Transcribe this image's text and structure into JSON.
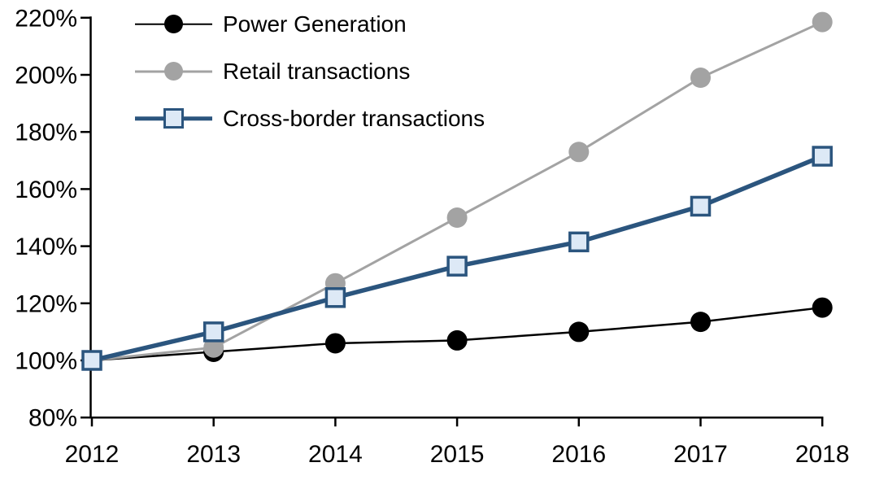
{
  "chart_data": {
    "type": "line",
    "title": "",
    "xlabel": "",
    "ylabel": "",
    "grid": false,
    "legend_position": "top-left",
    "x": [
      2012,
      2013,
      2014,
      2015,
      2016,
      2017,
      2018
    ],
    "x_tick_labels": [
      "2012",
      "2013",
      "2014",
      "2015",
      "2016",
      "2017",
      "2018"
    ],
    "y_axis": {
      "min": 80,
      "max": 220,
      "step": 20,
      "ticks": [
        220,
        200,
        180,
        160,
        140,
        120,
        100,
        80
      ],
      "tick_labels": [
        "220%",
        "200%",
        "180%",
        "160%",
        "140%",
        "120%",
        "100%",
        "80%"
      ],
      "unit": "%"
    },
    "series": [
      {
        "name": "Power Generation",
        "values": [
          100,
          103,
          106,
          107,
          110,
          113.5,
          118.5
        ],
        "color": "#000000",
        "marker": "circle",
        "marker_fill": "#000000",
        "line_width": 2.5
      },
      {
        "name": "Retail transactions",
        "values": [
          100,
          104.5,
          127,
          150,
          173,
          199,
          218.5
        ],
        "color": "#A3A3A3",
        "marker": "circle",
        "marker_fill": "#A3A3A3",
        "line_width": 3
      },
      {
        "name": "Cross-border transactions",
        "values": [
          100,
          110,
          122,
          133,
          141.5,
          154,
          171.5
        ],
        "color": "#2B557E",
        "marker": "square",
        "marker_fill": "#DDE9F6",
        "line_width": 5.5
      }
    ]
  },
  "colors": {
    "axis": "#000000",
    "background": "#ffffff",
    "accent_blue": "#2B557E",
    "accent_blue_fill": "#DDE9F6",
    "accent_gray": "#A3A3A3",
    "accent_black": "#000000"
  }
}
